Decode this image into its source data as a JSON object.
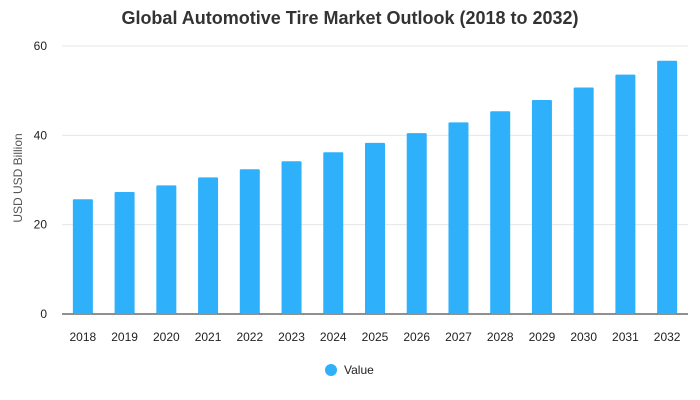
{
  "chart_data": {
    "type": "bar",
    "title": "Global Automotive Tire Market Outlook (2018 to 2032)",
    "xlabel": "",
    "ylabel": "USD USD Billion",
    "categories": [
      "2018",
      "2019",
      "2020",
      "2021",
      "2022",
      "2023",
      "2024",
      "2025",
      "2026",
      "2027",
      "2028",
      "2029",
      "2030",
      "2031",
      "2032"
    ],
    "series": [
      {
        "name": "Value",
        "values": [
          25.7,
          27.3,
          28.8,
          30.6,
          32.4,
          34.2,
          36.2,
          38.3,
          40.5,
          42.9,
          45.4,
          47.9,
          50.7,
          53.6,
          56.7
        ]
      }
    ],
    "ylim": [
      0,
      60
    ],
    "yticks": [
      0,
      20,
      40,
      60
    ],
    "grid": true,
    "legend_position": "bottom",
    "colors": {
      "bar": "#2fb0fb"
    }
  }
}
